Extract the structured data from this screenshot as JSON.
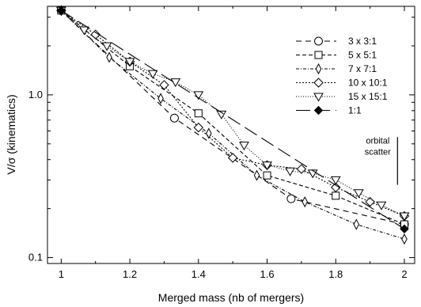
{
  "chart_data": {
    "type": "line",
    "title": "",
    "xlabel": "Merged mass (nb of mergers)",
    "ylabel": "V/σ (kinematics)",
    "xlim": [
      0.96,
      2.03
    ],
    "ylim": [
      0.092,
      3.5
    ],
    "yscale": "log",
    "grid": false,
    "legend_position": "top-right",
    "x_ticks": [
      {
        "value": 1,
        "label": "1"
      },
      {
        "value": 1.2,
        "label": "1.2"
      },
      {
        "value": 1.4,
        "label": "1.4"
      },
      {
        "value": 1.6,
        "label": "1.6"
      },
      {
        "value": 1.8,
        "label": "1.8"
      },
      {
        "value": 2,
        "label": "2"
      }
    ],
    "y_ticks": [
      {
        "value": 0.1,
        "label": "0.1"
      },
      {
        "value": 1.0,
        "label": "1.0"
      }
    ],
    "annotation": {
      "lines": [
        "orbital",
        "scatter"
      ],
      "bar_x": 1.98,
      "bar_y": [
        0.28,
        0.55
      ]
    },
    "series": [
      {
        "name": "3 x 3:1",
        "marker": "circle",
        "dash": "7,5",
        "x": [
          1,
          1.33,
          1.67,
          2
        ],
        "y": [
          3.3,
          0.72,
          0.23,
          0.16
        ]
      },
      {
        "name": "5 x 5:1",
        "marker": "square",
        "dash": "5,3",
        "x": [
          1,
          1.2,
          1.4,
          1.6,
          1.8,
          2
        ],
        "y": [
          3.3,
          1.5,
          0.77,
          0.32,
          0.24,
          0.16
        ]
      },
      {
        "name": "7 x 7:1",
        "marker": "thin-diamond",
        "dash": "4,2,1,2",
        "x": [
          1,
          1.14,
          1.29,
          1.43,
          1.57,
          1.71,
          1.86,
          2
        ],
        "y": [
          3.3,
          1.7,
          0.95,
          0.58,
          0.32,
          0.22,
          0.16,
          0.13
        ]
      },
      {
        "name": "10 x 10:1",
        "marker": "diamond",
        "dash": "2,2",
        "x": [
          1,
          1.1,
          1.2,
          1.3,
          1.4,
          1.5,
          1.6,
          1.7,
          1.8,
          1.9,
          2
        ],
        "y": [
          3.3,
          2.35,
          1.6,
          1.15,
          0.63,
          0.41,
          0.37,
          0.35,
          0.27,
          0.22,
          0.18
        ]
      },
      {
        "name": "15 x 15:1",
        "marker": "triangle-down",
        "dash": "1,2",
        "x": [
          1,
          1.067,
          1.133,
          1.2,
          1.267,
          1.333,
          1.4,
          1.467,
          1.533,
          1.6,
          1.667,
          1.733,
          1.8,
          1.867,
          1.933,
          2
        ],
        "y": [
          3.3,
          2.5,
          2.0,
          1.6,
          1.35,
          1.2,
          1.0,
          0.76,
          0.49,
          0.37,
          0.34,
          0.33,
          0.3,
          0.25,
          0.21,
          0.18
        ]
      },
      {
        "name": "1:1",
        "marker": "filled-diamond",
        "dash": "18,7",
        "x": [
          1,
          2
        ],
        "y": [
          3.3,
          0.15
        ]
      }
    ]
  }
}
